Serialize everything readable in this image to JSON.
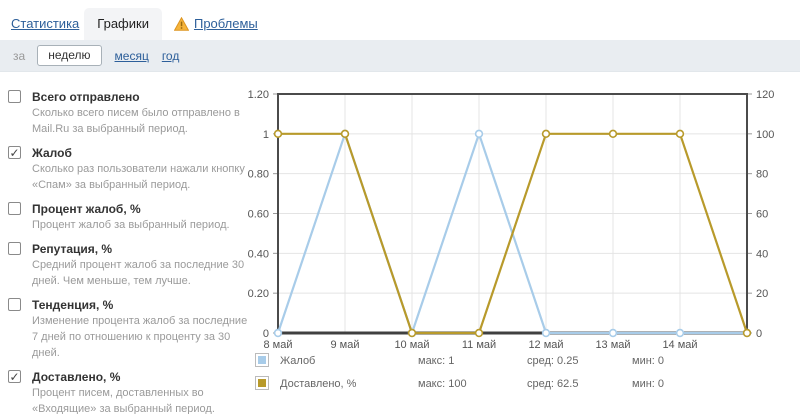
{
  "tabs": {
    "statistics": "Статистика",
    "charts": "Графики",
    "problems": "Проблемы"
  },
  "problems_icon": {
    "name": "warning-triangle",
    "color": "#F2A73B"
  },
  "period": {
    "label": "за",
    "week": "неделю",
    "month": "месяц",
    "year": "год",
    "selected": "неделю"
  },
  "metrics": [
    {
      "label": "Всего отправлено",
      "checked": false,
      "description": "Сколько всего писем было отправлено в Mail.Ru за выбранный период."
    },
    {
      "label": "Жалоб",
      "checked": true,
      "description": "Сколько раз пользователи нажали кнопку «Спам» за выбранный период."
    },
    {
      "label": "Процент жалоб, %",
      "checked": false,
      "description": "Процент жалоб за выбранный период."
    },
    {
      "label": "Репутация, %",
      "checked": false,
      "description": "Средний процент жалоб за последние 30 дней. Чем меньше, тем лучше."
    },
    {
      "label": "Тенденция, %",
      "checked": false,
      "description": "Изменение процента жалоб за последние 7 дней по отношению к проценту за 30 дней."
    },
    {
      "label": "Доставлено, %",
      "checked": true,
      "description": "Процент писем, доставленных во «Входящие» за выбранный период."
    }
  ],
  "chart_data": {
    "type": "line",
    "x": [
      "8 май",
      "9 май",
      "10 май",
      "11 май",
      "12 май",
      "13 май",
      "14 май",
      ""
    ],
    "series": [
      {
        "name": "Жалоб",
        "axis": "left",
        "color": "#a8cce9",
        "values": [
          0,
          1,
          0,
          1,
          0,
          0,
          0,
          0
        ],
        "max": 1,
        "avg": 0.25,
        "min": 0
      },
      {
        "name": "Доставлено, %",
        "axis": "right",
        "color": "#b89a2b",
        "values": [
          100,
          100,
          0,
          0,
          100,
          100,
          100,
          0
        ],
        "max": 100,
        "avg": 62.5,
        "min": 0
      }
    ],
    "left_axis": {
      "ticks": [
        "0",
        "0.20",
        "0.40",
        "0.60",
        "0.80",
        "1",
        "1.20"
      ],
      "min": 0,
      "max": 1.2
    },
    "right_axis": {
      "ticks": [
        "0",
        "20",
        "40",
        "60",
        "80",
        "100",
        "120"
      ],
      "min": 0,
      "max": 120
    },
    "grid": true,
    "legend_position": "bottom"
  },
  "legend_labels": {
    "max": "макс",
    "avg": "сред",
    "min": "мин"
  }
}
